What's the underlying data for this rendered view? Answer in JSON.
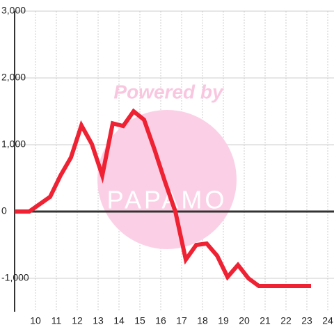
{
  "chart_data": {
    "type": "line",
    "watermark": "Powered by",
    "logo_text": "PAPAMO",
    "x": [
      9,
      9.7,
      10.7,
      11.2,
      11.7,
      12.2,
      12.7,
      13.2,
      13.7,
      14.2,
      14.7,
      15.2,
      15.7,
      16.2,
      16.7,
      17.2,
      17.7,
      18.2,
      18.7,
      19.2,
      19.7,
      20.2,
      20.7,
      23.2
    ],
    "series": [
      {
        "color": "#ee2233",
        "values": [
          0,
          0,
          220,
          540,
          810,
          1290,
          1010,
          540,
          1320,
          1280,
          1500,
          1375,
          930,
          450,
          0,
          -720,
          -500,
          -480,
          -660,
          -980,
          -800,
          -1000,
          -1115,
          -1115
        ]
      }
    ],
    "xlim": [
      9,
      24.3
    ],
    "xticks": [
      10,
      11,
      12,
      13,
      14,
      15,
      16,
      17,
      18,
      19,
      20,
      21,
      22,
      23,
      24
    ],
    "ylim": [
      -1500,
      3000
    ],
    "yticks": [
      {
        "value": -1000,
        "label": "-1,000"
      },
      0,
      {
        "value": 1000,
        "label": "1,000"
      },
      {
        "value": 2000,
        "label": "2,000"
      },
      {
        "value": 3000,
        "label": "3,000"
      }
    ],
    "grid": true
  }
}
